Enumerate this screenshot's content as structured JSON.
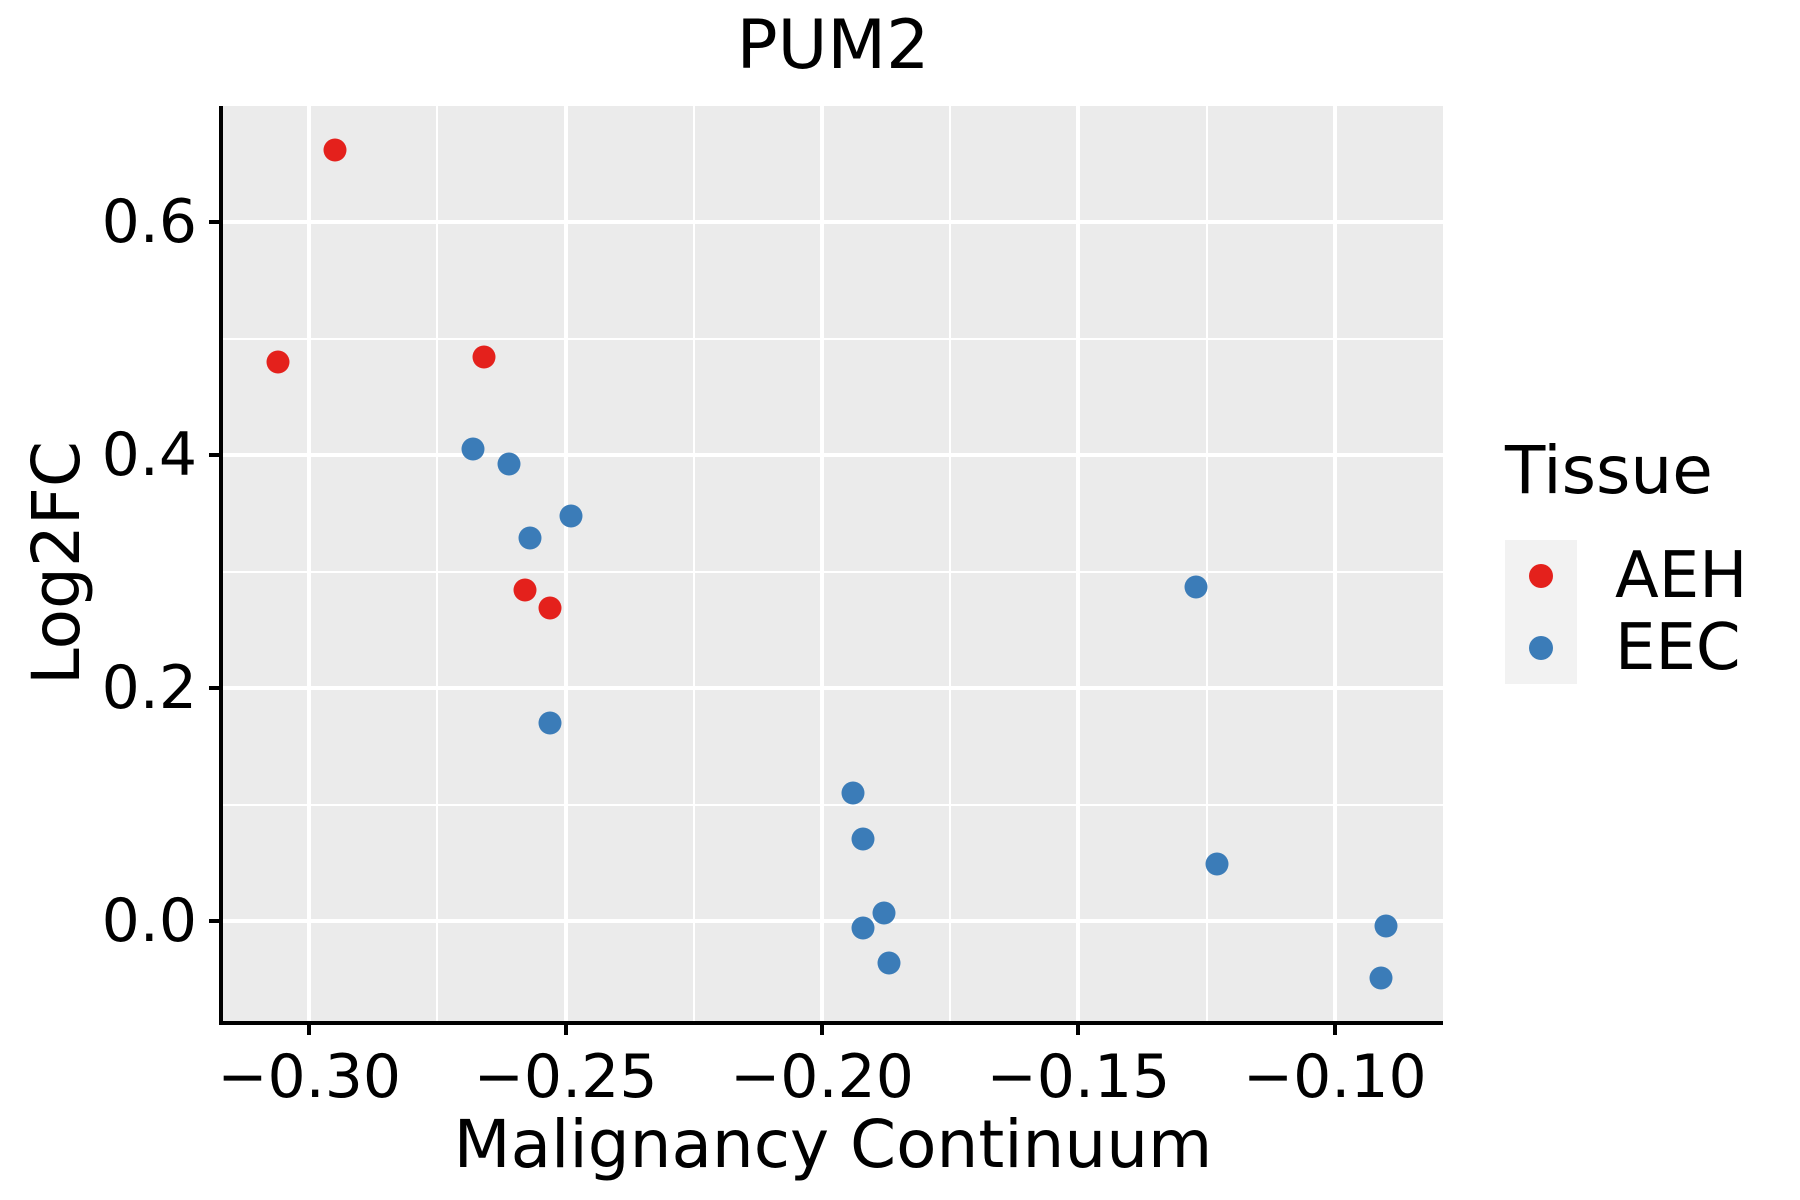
{
  "figure": {
    "title": "PUM2"
  },
  "chart_data": {
    "type": "scatter",
    "title": "PUM2",
    "xlabel": "Malignancy Continuum",
    "ylabel": "Log2FC",
    "xlim": [
      -0.3168,
      -0.0789
    ],
    "ylim": [
      -0.0858,
      0.6996
    ],
    "x_ticks": [
      -0.3,
      -0.25,
      -0.2,
      -0.15,
      -0.1
    ],
    "x_tick_labels": [
      "−0.30",
      "−0.25",
      "−0.20",
      "−0.15",
      "−0.10"
    ],
    "y_ticks": [
      0.0,
      0.2,
      0.4,
      0.6
    ],
    "y_tick_labels": [
      "0.0",
      "0.2",
      "0.4",
      "0.6"
    ],
    "x_minor_ticks": [
      -0.275,
      -0.225,
      -0.175,
      -0.125
    ],
    "y_minor_ticks": [
      0.1,
      0.3,
      0.5
    ],
    "grid": true,
    "panel_bg": "#EBEBEB",
    "grid_color": "#FFFFFF",
    "legend_position": "right",
    "series": [
      {
        "name": "AEH",
        "color": "#E4211C",
        "points": [
          [
            -0.295,
            0.662
          ],
          [
            -0.306,
            0.48
          ],
          [
            -0.266,
            0.484
          ],
          [
            -0.258,
            0.284
          ],
          [
            -0.253,
            0.269
          ]
        ]
      },
      {
        "name": "EEC",
        "color": "#3B7CB8",
        "points": [
          [
            -0.268,
            0.405
          ],
          [
            -0.261,
            0.392
          ],
          [
            -0.249,
            0.348
          ],
          [
            -0.257,
            0.329
          ],
          [
            -0.253,
            0.17
          ],
          [
            -0.194,
            0.11
          ],
          [
            -0.192,
            0.07
          ],
          [
            -0.192,
            -0.006
          ],
          [
            -0.188,
            0.007
          ],
          [
            -0.187,
            -0.036
          ],
          [
            -0.127,
            0.287
          ],
          [
            -0.123,
            0.049
          ],
          [
            -0.09,
            -0.004
          ],
          [
            -0.091,
            -0.049
          ]
        ]
      }
    ]
  },
  "legend": {
    "title": "Tissue",
    "items": [
      {
        "label": "AEH",
        "color": "#E4211C"
      },
      {
        "label": "EEC",
        "color": "#3B7CB8"
      }
    ]
  }
}
